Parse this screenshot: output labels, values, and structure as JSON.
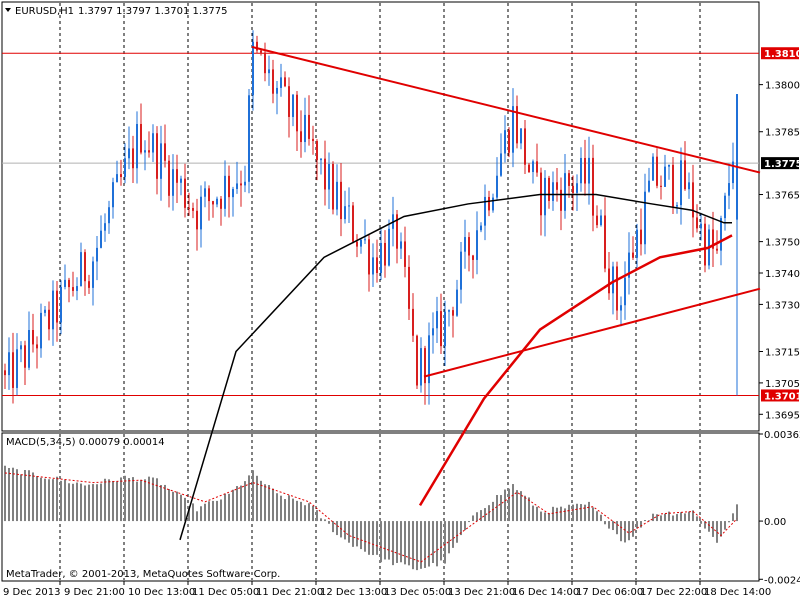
{
  "header": {
    "symbol_label": "EURUSD,H1",
    "ohlc": "1.3797 1.3797 1.3701 1.3775"
  },
  "macd_panel": {
    "label": "MACD(5,34,5) 0.00079 0.00014"
  },
  "copyright": "MetaTrader, © 2001-2013, MetaQuotes Software Corp.",
  "colors": {
    "background": "#ffffff",
    "grid": "#000000",
    "bull_candle": "#1f70d8",
    "bear_candle": "#d81e1e",
    "ma_long": "#000000",
    "ma_short": "#e00000",
    "trendline": "#e00000",
    "hline": "#e00000",
    "current_price_line": "#b0b0b0",
    "macd_histogram": "#808080",
    "macd_signal": "#e00000"
  },
  "chart_data": [
    {
      "type": "candlestick",
      "symbol": "EURUSD",
      "timeframe": "H1",
      "ylim": [
        1.369,
        1.3826
      ],
      "y_ticks": [
        "1.3800",
        "1.3785",
        "1.3765",
        "1.3750",
        "1.3740",
        "1.3730",
        "1.3715",
        "1.3705",
        "1.3695"
      ],
      "x_tick_labels": [
        "9 Dec 2013",
        "9 Dec 21:00",
        "10 Dec 13:00",
        "11 Dec 05:00",
        "11 Dec 21:00",
        "12 Dec 13:00",
        "13 Dec 05:00",
        "13 Dec 21:00",
        "16 Dec 14:00",
        "17 Dec 06:00",
        "17 Dec 22:00",
        "18 Dec 14:00"
      ],
      "grid": "vertical dashed",
      "price_labels": [
        {
          "value": "1.3810",
          "kind": "horizontal-line"
        },
        {
          "value": "1.3775",
          "kind": "current-price"
        },
        {
          "value": "1.3701",
          "kind": "horizontal-line"
        }
      ],
      "key_points": [
        {
          "x": 0,
          "close": 1.3705
        },
        {
          "x": 22,
          "close": 1.3745
        },
        {
          "x": 34,
          "close": 1.3785
        },
        {
          "x": 48,
          "close": 1.376
        },
        {
          "x": 60,
          "close": 1.3773
        },
        {
          "x": 62,
          "close": 1.381
        },
        {
          "x": 74,
          "close": 1.3785
        },
        {
          "x": 84,
          "close": 1.376
        },
        {
          "x": 92,
          "close": 1.3745
        },
        {
          "x": 98,
          "close": 1.3752
        },
        {
          "x": 103,
          "close": 1.3708
        },
        {
          "x": 110,
          "close": 1.3725
        },
        {
          "x": 118,
          "close": 1.3755
        },
        {
          "x": 127,
          "close": 1.379
        },
        {
          "x": 133,
          "close": 1.3765
        },
        {
          "x": 146,
          "close": 1.377
        },
        {
          "x": 153,
          "close": 1.373
        },
        {
          "x": 162,
          "close": 1.377
        },
        {
          "x": 170,
          "close": 1.3768
        },
        {
          "x": 175,
          "close": 1.375
        },
        {
          "x": 178,
          "close": 1.3745
        },
        {
          "x": 180,
          "close": 1.376
        },
        {
          "x": 183,
          "close": 1.379
        }
      ],
      "final_candle": {
        "open": 1.3797,
        "high": 1.3797,
        "low": 1.3701,
        "close": 1.3775
      },
      "moving_averages": [
        {
          "color": "black",
          "points": [
            [
              44,
              1.3655
            ],
            [
              58,
              1.3715
            ],
            [
              80,
              1.3745
            ],
            [
              100,
              1.3758
            ],
            [
              116,
              1.3762
            ],
            [
              134,
              1.3765
            ],
            [
              148,
              1.3765
            ],
            [
              162,
              1.3762
            ],
            [
              172,
              1.376
            ],
            [
              180,
              1.3756
            ],
            [
              182,
              1.3756
            ]
          ]
        },
        {
          "color": "red",
          "points": [
            [
              104,
              1.3666
            ],
            [
              120,
              1.37
            ],
            [
              134,
              1.3722
            ],
            [
              152,
              1.3737
            ],
            [
              164,
              1.3745
            ],
            [
              176,
              1.3748
            ],
            [
              182,
              1.3752
            ]
          ]
        }
      ],
      "trendlines": [
        {
          "from": [
            62,
            1.3812
          ],
          "to": [
            189,
            1.3772
          ]
        },
        {
          "from": [
            105,
            1.3707
          ],
          "to": [
            189,
            1.3735
          ]
        }
      ]
    },
    {
      "type": "bar",
      "indicator": "MACD(5,34,5)",
      "main_value": "0.00079",
      "signal_value": "0.00014",
      "ylim": [
        -0.00245,
        0.00362
      ],
      "y_ticks": [
        "0.00362",
        "0.00",
        "-0.00242"
      ],
      "key_points": [
        {
          "x": 0,
          "value": 0.0022
        },
        {
          "x": 20,
          "value": 0.0015
        },
        {
          "x": 30,
          "value": 0.0018
        },
        {
          "x": 38,
          "value": 0.0017
        },
        {
          "x": 48,
          "value": 0.0005
        },
        {
          "x": 56,
          "value": 0.0011
        },
        {
          "x": 62,
          "value": 0.002
        },
        {
          "x": 68,
          "value": 0.0011
        },
        {
          "x": 76,
          "value": 0.0007
        },
        {
          "x": 84,
          "value": -0.0007
        },
        {
          "x": 94,
          "value": -0.0016
        },
        {
          "x": 103,
          "value": -0.002
        },
        {
          "x": 110,
          "value": -0.0017
        },
        {
          "x": 118,
          "value": 0.0004
        },
        {
          "x": 127,
          "value": 0.0015
        },
        {
          "x": 134,
          "value": 0.0004
        },
        {
          "x": 146,
          "value": 0.0007
        },
        {
          "x": 155,
          "value": -0.0009
        },
        {
          "x": 162,
          "value": 0.0003
        },
        {
          "x": 172,
          "value": 0.0004
        },
        {
          "x": 178,
          "value": -0.0009
        },
        {
          "x": 183,
          "value": 0.0006
        }
      ],
      "signal_key_points": [
        {
          "x": 0,
          "value": 0.002
        },
        {
          "x": 22,
          "value": 0.0016
        },
        {
          "x": 34,
          "value": 0.0017
        },
        {
          "x": 50,
          "value": 0.0008
        },
        {
          "x": 62,
          "value": 0.0016
        },
        {
          "x": 76,
          "value": 0.0008
        },
        {
          "x": 86,
          "value": -0.0006
        },
        {
          "x": 104,
          "value": -0.0017
        },
        {
          "x": 118,
          "value": 0.0
        },
        {
          "x": 128,
          "value": 0.0012
        },
        {
          "x": 136,
          "value": 0.0003
        },
        {
          "x": 147,
          "value": 0.0006
        },
        {
          "x": 156,
          "value": -0.0005
        },
        {
          "x": 164,
          "value": 0.0003
        },
        {
          "x": 172,
          "value": 0.0004
        },
        {
          "x": 179,
          "value": -0.0006
        },
        {
          "x": 183,
          "value": 0.0001
        }
      ]
    }
  ]
}
